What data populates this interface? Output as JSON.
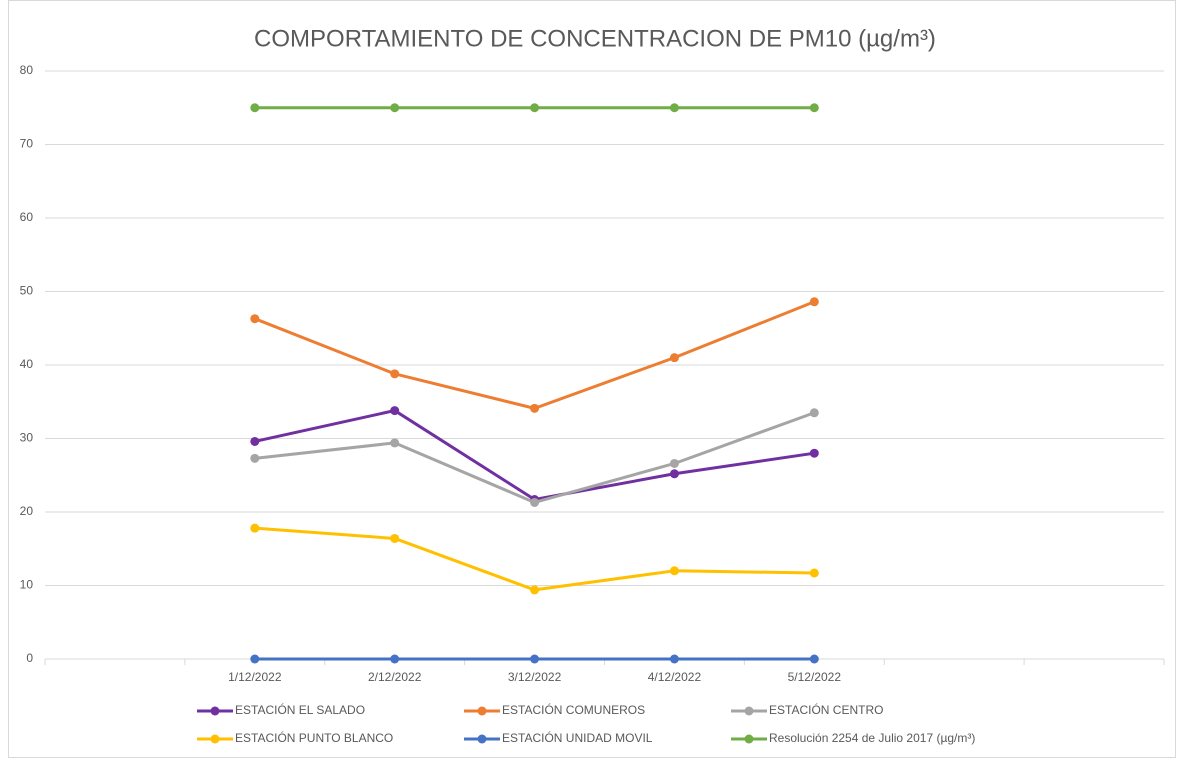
{
  "chart_data": {
    "type": "line",
    "title": "COMPORTAMIENTO DE CONCENTRACION DE PM10 (µg/m³)",
    "categories": [
      null,
      "1/12/2022",
      "2/12/2022",
      "3/12/2022",
      "4/12/2022",
      "5/12/2022",
      null,
      null
    ],
    "series": [
      {
        "name": "ESTACIÓN EL SALADO",
        "color": "#7030a0",
        "values": [
          null,
          29.6,
          33.8,
          21.7,
          25.2,
          28.0,
          null,
          null
        ]
      },
      {
        "name": "ESTACIÓN COMUNEROS",
        "color": "#ed7d31",
        "values": [
          null,
          46.3,
          38.8,
          34.1,
          41.0,
          48.6,
          null,
          null
        ]
      },
      {
        "name": "ESTACIÓN CENTRO",
        "color": "#a5a5a5",
        "values": [
          null,
          27.3,
          29.4,
          21.3,
          26.6,
          33.5,
          null,
          null
        ]
      },
      {
        "name": "ESTACIÓN PUNTO BLANCO",
        "color": "#ffc000",
        "values": [
          null,
          17.8,
          16.4,
          9.4,
          12.0,
          11.7,
          null,
          null
        ]
      },
      {
        "name": "ESTACIÓN UNIDAD MOVIL",
        "color": "#4472c4",
        "values": [
          null,
          0,
          0,
          0,
          0,
          0,
          null,
          null
        ]
      },
      {
        "name": "Resolución 2254 de Julio 2017 (µg/m³)",
        "color": "#70ad47",
        "values": [
          null,
          75,
          75,
          75,
          75,
          75,
          null,
          null
        ]
      }
    ],
    "ylim": [
      0,
      80
    ],
    "yticks": [
      0,
      10,
      20,
      30,
      40,
      50,
      60,
      70,
      80
    ],
    "grid": true,
    "legend": "bottom"
  }
}
